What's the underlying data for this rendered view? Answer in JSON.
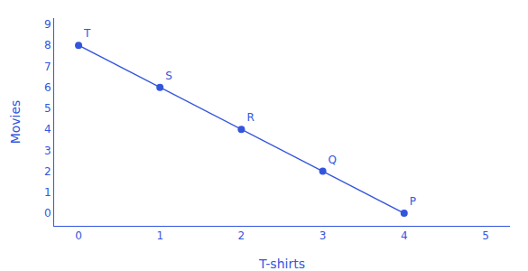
{
  "chart_data": {
    "type": "line",
    "x": [
      0,
      1,
      2,
      3,
      4
    ],
    "values": [
      8,
      6,
      4,
      2,
      0
    ],
    "labels": [
      "T",
      "S",
      "R",
      "Q",
      "P"
    ],
    "xlabel": "T-shirts",
    "ylabel": "Movies",
    "xlim": [
      -0.3,
      5.3
    ],
    "ylim": [
      -0.6,
      9.3
    ],
    "xticks": [
      0,
      1,
      2,
      3,
      4,
      5
    ],
    "yticks": [
      0,
      1,
      2,
      3,
      4,
      5,
      6,
      7,
      8,
      9
    ],
    "color": "#3355dd",
    "marker": "circle",
    "grid": false
  }
}
